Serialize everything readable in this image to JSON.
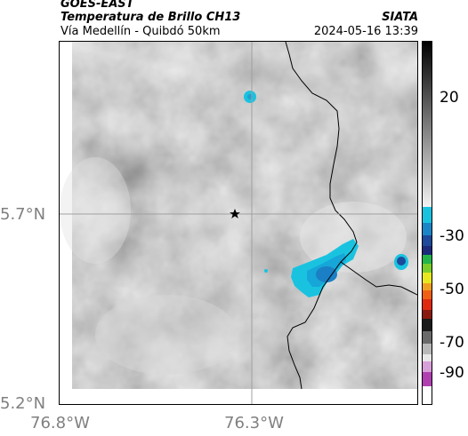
{
  "header": {
    "satellite": "GOES-EAST",
    "product": "Temperatura de Brillo CH13",
    "region": "Vía Medellín - Quibdó 50km",
    "source": "SIATA",
    "datetime": "2024-05-16 13:39"
  },
  "axes": {
    "lat_labels": [
      "5.7°N",
      "5.2°N"
    ],
    "lon_labels": [
      "76.8°W",
      "76.3°W"
    ]
  },
  "colorbar": {
    "ticks": [
      "20",
      "-30",
      "-50",
      "-70",
      "-90"
    ],
    "colors": {
      "warm_gray": "#8a8a8a",
      "cold_cyan": "#19c3e0",
      "deep_blue": "#1d4a9a",
      "green": "#23b54a",
      "yellow": "#e8e81f",
      "red": "#e02a10",
      "black": "#000000",
      "magenta": "#b040b0"
    }
  },
  "map": {
    "marker": "star-icon",
    "gridline_color": "#a0a0a0",
    "border_color": "#000000"
  }
}
